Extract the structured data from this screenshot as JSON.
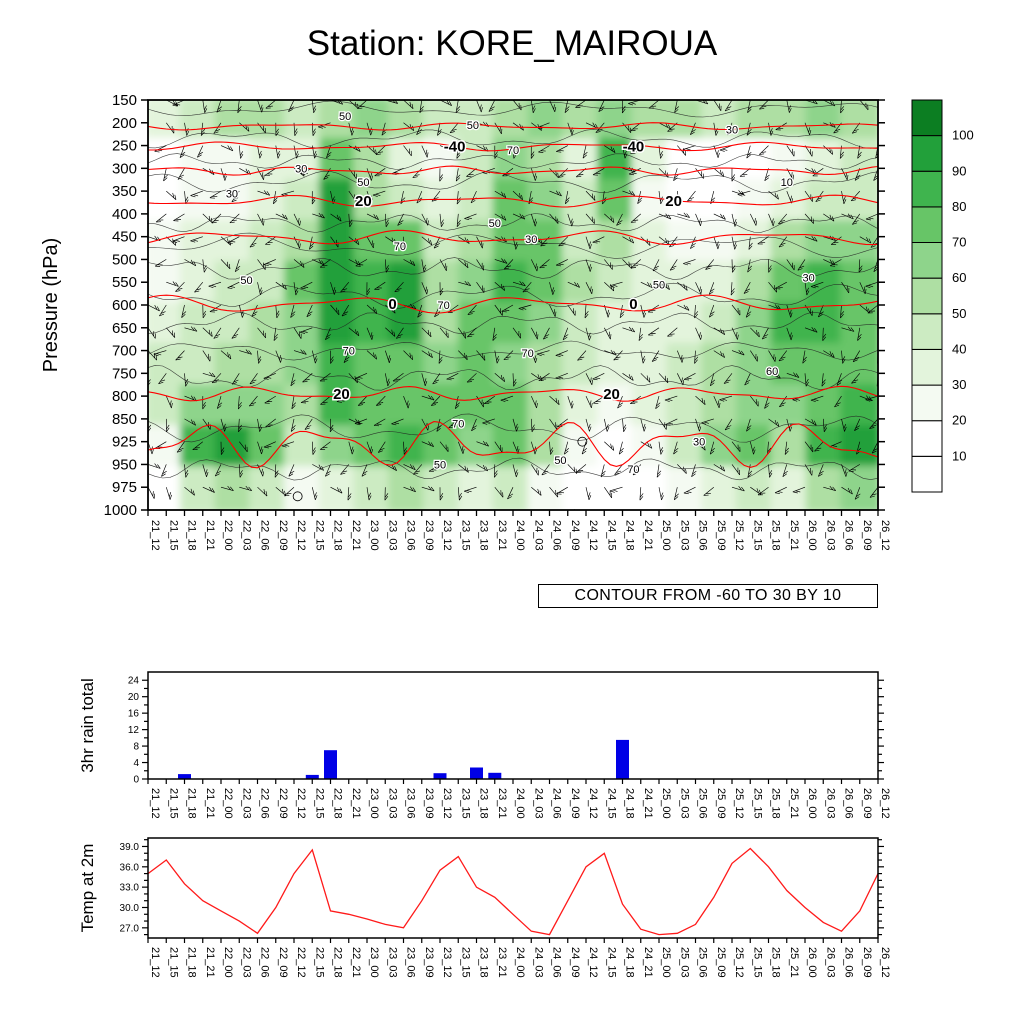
{
  "title": "Station: KORE_MAIROUA",
  "contour_note": "CONTOUR FROM -60 TO 30 BY 10",
  "times": [
    "21_12",
    "21_15",
    "21_18",
    "21_21",
    "22_00",
    "22_03",
    "22_06",
    "22_09",
    "22_12",
    "22_15",
    "22_18",
    "22_21",
    "23_00",
    "23_03",
    "23_06",
    "23_09",
    "23_12",
    "23_15",
    "23_18",
    "23_21",
    "24_00",
    "24_03",
    "24_06",
    "24_09",
    "24_12",
    "24_15",
    "24_18",
    "24_21",
    "25_00",
    "25_03",
    "25_06",
    "25_09",
    "25_12",
    "25_15",
    "25_18",
    "25_21",
    "26_00",
    "26_03",
    "26_06",
    "26_09",
    "26_12"
  ],
  "chart_data": [
    {
      "type": "heatmap",
      "title": "Pressure-time section: humidity shading, red temperature contours, wind barbs",
      "ylabel": "Pressure (hPa)",
      "pressure_levels": [
        150,
        200,
        250,
        300,
        350,
        400,
        450,
        500,
        550,
        600,
        650,
        700,
        750,
        800,
        850,
        925,
        950,
        975,
        1000
      ],
      "x_ref": "times",
      "contour_note": "CONTOUR FROM -60 TO 30 BY 10",
      "colorbar": {
        "tick_labels": [
          10,
          20,
          30,
          40,
          50,
          60,
          70,
          80,
          90,
          100
        ],
        "colors": [
          "#ffffff",
          "#ffffff",
          "#f4faf2",
          "#e3f4dc",
          "#ccebc2",
          "#aedfa3",
          "#8ed48b",
          "#67c567",
          "#3fb44e",
          "#22a03a",
          "#0c7e22"
        ]
      },
      "temp_contour_color": "#ff0000",
      "temp_contours": [
        {
          "p": 208,
          "amp": 2.5,
          "freq": 4,
          "labels": []
        },
        {
          "p": 252,
          "amp": 3,
          "freq": 4,
          "labels": [
            {
              "t": "-40",
              "fx": 0.42
            },
            {
              "t": "-40",
              "fx": 0.665
            }
          ]
        },
        {
          "p": 305,
          "amp": 3,
          "freq": 5,
          "labels": []
        },
        {
          "p": 372,
          "amp": 4,
          "freq": 4,
          "labels": [
            {
              "t": "20",
              "fx": 0.295
            },
            {
              "t": "20",
              "fx": 0.72
            }
          ]
        },
        {
          "p": 452,
          "amp": 5,
          "freq": 4,
          "labels": []
        },
        {
          "p": 598,
          "amp": 6,
          "freq": 4,
          "labels": [
            {
              "t": "0",
              "fx": 0.335
            },
            {
              "t": "0",
              "fx": 0.665
            }
          ]
        },
        {
          "p": 795,
          "amp": 5,
          "freq": 5,
          "labels": [
            {
              "t": "20",
              "fx": 0.265
            },
            {
              "t": "20",
              "fx": 0.635
            }
          ]
        },
        {
          "p": 928,
          "amp": 16,
          "freq": 6,
          "labels": []
        }
      ],
      "black_contour_labels": [
        {
          "t": "50",
          "fx": 0.27,
          "p": 185
        },
        {
          "t": "30",
          "fx": 0.21,
          "p": 300
        },
        {
          "t": "50",
          "fx": 0.445,
          "p": 205
        },
        {
          "t": "70",
          "fx": 0.5,
          "p": 260
        },
        {
          "t": "30",
          "fx": 0.8,
          "p": 215
        },
        {
          "t": "10",
          "fx": 0.875,
          "p": 330
        },
        {
          "t": "30",
          "fx": 0.115,
          "p": 355
        },
        {
          "t": "50",
          "fx": 0.295,
          "p": 330
        },
        {
          "t": "50",
          "fx": 0.475,
          "p": 420
        },
        {
          "t": "70",
          "fx": 0.345,
          "p": 470
        },
        {
          "t": "30",
          "fx": 0.525,
          "p": 455
        },
        {
          "t": "50",
          "fx": 0.135,
          "p": 545
        },
        {
          "t": "70",
          "fx": 0.405,
          "p": 600
        },
        {
          "t": "50",
          "fx": 0.7,
          "p": 555
        },
        {
          "t": "30",
          "fx": 0.905,
          "p": 540
        },
        {
          "t": "70",
          "fx": 0.275,
          "p": 700
        },
        {
          "t": "70",
          "fx": 0.52,
          "p": 705
        },
        {
          "t": "60",
          "fx": 0.855,
          "p": 745
        },
        {
          "t": "70",
          "fx": 0.425,
          "p": 865
        },
        {
          "t": "50",
          "fx": 0.4,
          "p": 950
        },
        {
          "t": "50",
          "fx": 0.565,
          "p": 945
        },
        {
          "t": "70",
          "fx": 0.665,
          "p": 955
        },
        {
          "t": "30",
          "fx": 0.755,
          "p": 925
        }
      ],
      "humidity": {
        "unit": "%",
        "pressure_rows": [
          150,
          250,
          350,
          450,
          550,
          650,
          750,
          850,
          950,
          1000
        ],
        "time_cols_every_n": 2,
        "grid": [
          [
            30,
            45,
            55,
            50,
            45,
            55,
            60,
            55,
            45,
            40,
            50,
            60,
            55,
            60,
            55,
            50,
            45,
            50,
            55,
            60,
            55
          ],
          [
            15,
            20,
            25,
            30,
            35,
            75,
            50,
            35,
            25,
            40,
            65,
            55,
            35,
            85,
            30,
            15,
            10,
            15,
            25,
            35,
            45
          ],
          [
            15,
            20,
            25,
            35,
            45,
            90,
            55,
            45,
            30,
            45,
            70,
            65,
            40,
            75,
            25,
            15,
            10,
            20,
            30,
            40,
            45
          ],
          [
            20,
            30,
            35,
            40,
            55,
            95,
            70,
            75,
            40,
            55,
            75,
            70,
            45,
            50,
            30,
            20,
            25,
            35,
            55,
            65,
            60
          ],
          [
            25,
            35,
            40,
            45,
            70,
            95,
            85,
            95,
            50,
            65,
            80,
            75,
            50,
            40,
            35,
            30,
            35,
            50,
            75,
            85,
            70
          ],
          [
            35,
            40,
            45,
            50,
            65,
            90,
            80,
            95,
            55,
            70,
            70,
            65,
            45,
            35,
            35,
            35,
            45,
            60,
            80,
            85,
            75
          ],
          [
            40,
            45,
            50,
            55,
            60,
            85,
            70,
            75,
            60,
            70,
            65,
            55,
            40,
            30,
            30,
            40,
            50,
            60,
            70,
            75,
            70
          ],
          [
            45,
            60,
            65,
            60,
            55,
            80,
            75,
            70,
            70,
            75,
            70,
            50,
            35,
            25,
            30,
            45,
            55,
            65,
            60,
            70,
            80
          ],
          [
            20,
            85,
            90,
            70,
            45,
            60,
            70,
            80,
            75,
            65,
            70,
            55,
            25,
            15,
            20,
            40,
            60,
            70,
            55,
            85,
            95
          ],
          [
            5,
            45,
            55,
            40,
            20,
            30,
            40,
            50,
            45,
            35,
            40,
            25,
            10,
            5,
            10,
            20,
            30,
            40,
            30,
            55,
            65
          ]
        ]
      }
    },
    {
      "type": "bar",
      "ylabel": "3hr rain total",
      "ytick_values": [
        0,
        4,
        8,
        12,
        16,
        20,
        24
      ],
      "ylim": [
        0,
        26
      ],
      "categories_ref": "times",
      "bar_color": "#0000e6",
      "values": [
        0,
        0,
        1.2,
        0,
        0,
        0,
        0,
        0,
        0,
        1.0,
        7.0,
        0,
        0,
        0,
        0,
        0,
        1.4,
        0,
        2.8,
        1.5,
        0,
        0,
        0,
        0,
        0,
        0,
        9.5,
        0,
        0,
        0,
        0,
        0,
        0,
        0,
        0,
        0,
        0,
        0,
        0,
        0,
        0
      ]
    },
    {
      "type": "line",
      "ylabel": "Temp at 2m",
      "ytick_values": [
        27,
        30,
        33,
        36,
        39
      ],
      "ytick_labels": [
        "27.0",
        "30.0",
        "33.0",
        "36.0",
        "39.0"
      ],
      "ylim": [
        25.5,
        40.25
      ],
      "x_ref": "times",
      "line_color": "#ff1a1a",
      "values": [
        35.0,
        37.0,
        33.5,
        31.0,
        29.5,
        28.0,
        26.2,
        30.0,
        35.0,
        38.5,
        29.5,
        29.0,
        28.3,
        27.5,
        27.0,
        31.0,
        35.5,
        37.5,
        33.0,
        31.5,
        29.0,
        26.5,
        26.0,
        31.0,
        36.0,
        38.0,
        30.5,
        26.8,
        26.0,
        26.2,
        27.5,
        31.5,
        36.5,
        38.7,
        36.0,
        32.5,
        30.0,
        27.8,
        26.5,
        29.5,
        35.0
      ]
    }
  ]
}
